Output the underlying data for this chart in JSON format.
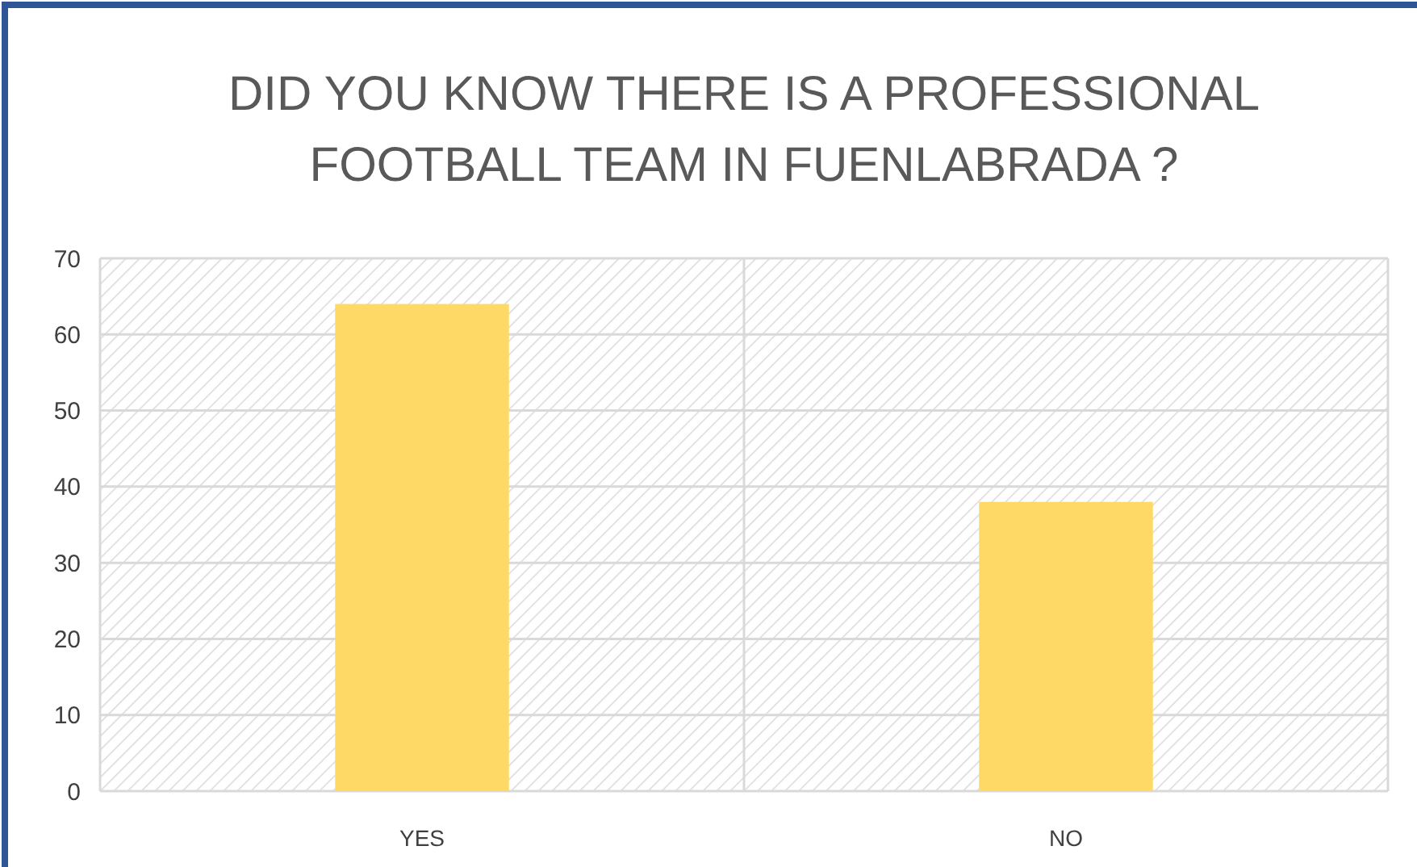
{
  "chart_data": {
    "type": "bar",
    "title": "DID YOU KNOW THERE IS A PROFESSIONAL FOOTBALL TEAM IN FUENLABRADA ?",
    "categories": [
      "YES",
      "NO"
    ],
    "values": [
      64,
      38
    ],
    "color": "#ffd966",
    "ylim": [
      0,
      70
    ],
    "yticks": [
      0,
      10,
      20,
      30,
      40,
      50,
      60,
      70
    ],
    "grid": true
  }
}
